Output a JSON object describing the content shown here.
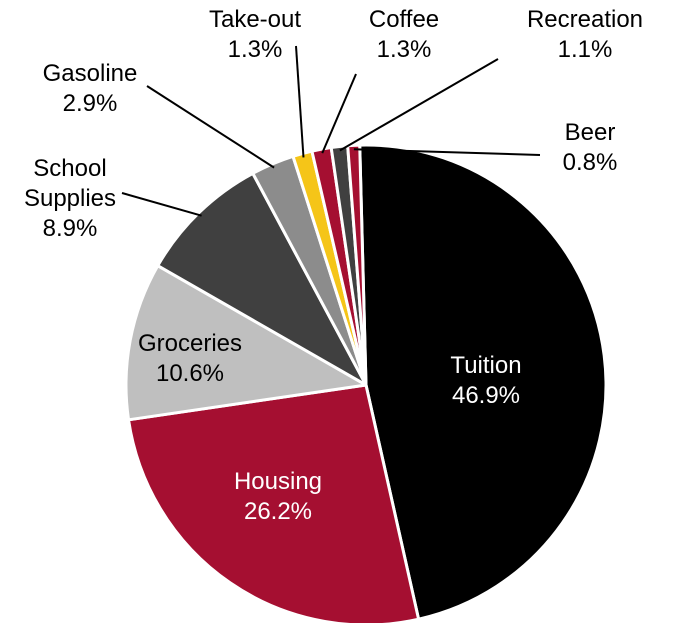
{
  "chart_data": {
    "type": "pie",
    "title": "",
    "slices": [
      {
        "label": "Tuition",
        "value": 46.9,
        "display": "46.9%",
        "color": "#000000",
        "text_color": "#ffffff"
      },
      {
        "label": "Housing",
        "value": 26.2,
        "display": "26.2%",
        "color": "#a50f31",
        "text_color": "#ffffff"
      },
      {
        "label": "Groceries",
        "value": 10.6,
        "display": "10.6%",
        "color": "#bfbfbf",
        "text_color": "#000000"
      },
      {
        "label": "School\nSupplies",
        "value": 8.9,
        "display": "8.9%",
        "color": "#404040",
        "text_color": "#000000"
      },
      {
        "label": "Gasoline",
        "value": 2.9,
        "display": "2.9%",
        "color": "#8c8c8c",
        "text_color": "#000000"
      },
      {
        "label": "Take-out",
        "value": 1.3,
        "display": "1.3%",
        "color": "#f5c518",
        "text_color": "#000000"
      },
      {
        "label": "Coffee",
        "value": 1.3,
        "display": "1.3%",
        "color": "#a50f31",
        "text_color": "#000000"
      },
      {
        "label": "Recreation",
        "value": 1.1,
        "display": "1.1%",
        "color": "#404040",
        "text_color": "#000000"
      },
      {
        "label": "Beer",
        "value": 0.8,
        "display": "0.8%",
        "color": "#a50f31",
        "text_color": "#000000"
      }
    ]
  }
}
